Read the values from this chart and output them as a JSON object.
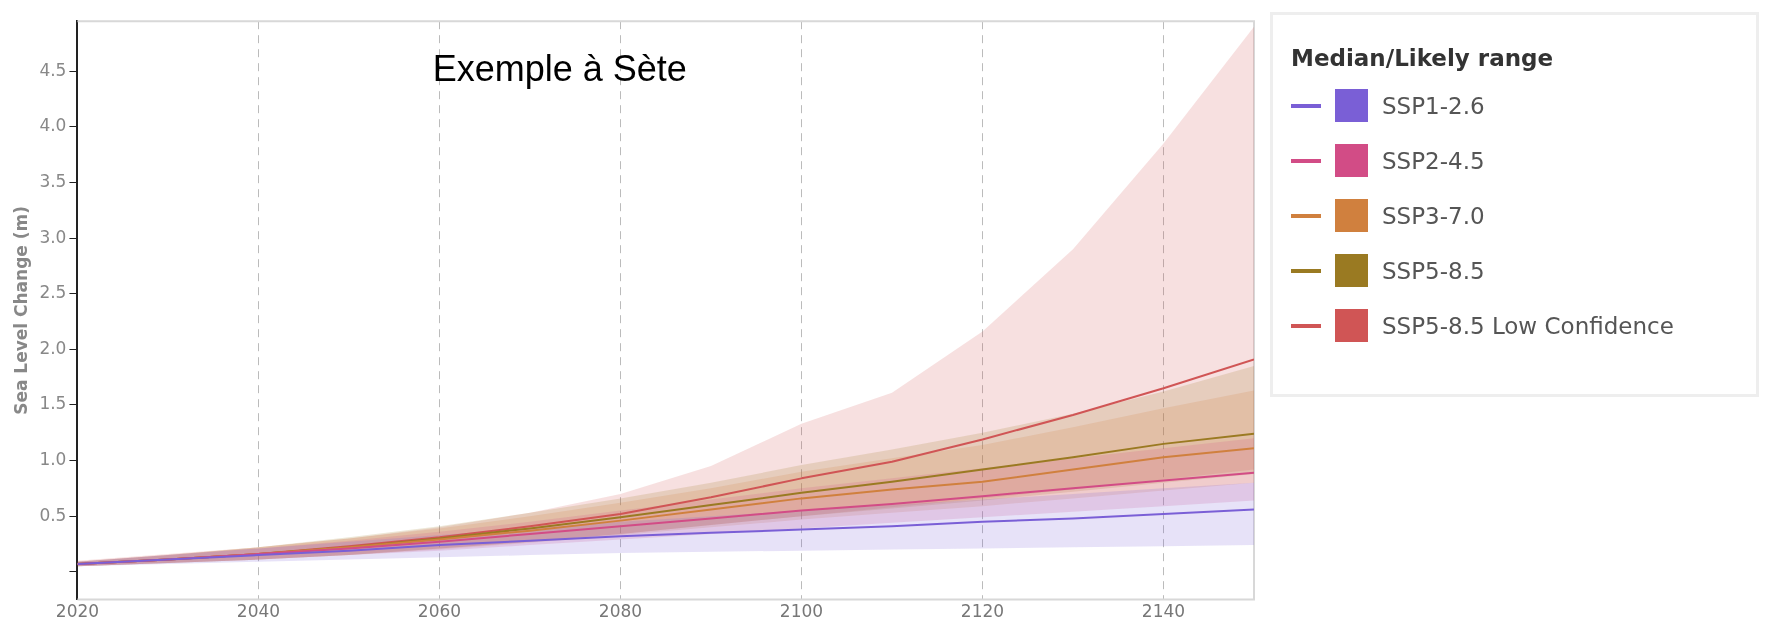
{
  "chart_data": {
    "type": "line",
    "title": "Exemple à Sète",
    "ylabel": "Sea Level Change (m)",
    "legend_title": "Median/Likely range",
    "legend": "right",
    "grid": "x",
    "line_style": "solid",
    "marker": "none",
    "x": [
      2020,
      2030,
      2040,
      2050,
      2060,
      2070,
      2080,
      2090,
      2100,
      2110,
      2120,
      2130,
      2140,
      2150
    ],
    "xlim": [
      2020,
      2150
    ],
    "xticks": [
      2020,
      2040,
      2060,
      2080,
      2100,
      2120,
      2140
    ],
    "ylim": [
      -0.25,
      4.95
    ],
    "yticks": [
      {
        "value": 0,
        "label": null
      },
      0.5,
      {
        "value": 1,
        "label": "1.0"
      },
      1.5,
      {
        "value": 2,
        "label": "2.0"
      },
      2.5,
      {
        "value": 3,
        "label": "3.0"
      },
      3.5,
      {
        "value": 4,
        "label": "4.0"
      },
      4.5
    ],
    "series": [
      {
        "name": "SSP1-2.6",
        "color": "#7a5fd6",
        "values": [
          0.07,
          0.11,
          0.15,
          0.19,
          0.24,
          0.28,
          0.32,
          0.35,
          0.38,
          0.41,
          0.45,
          0.48,
          0.52,
          0.56
        ],
        "lower": [
          0.05,
          0.07,
          0.09,
          0.11,
          0.13,
          0.15,
          0.17,
          0.18,
          0.19,
          0.2,
          0.21,
          0.22,
          0.23,
          0.24
        ],
        "upper": [
          0.09,
          0.15,
          0.21,
          0.27,
          0.33,
          0.39,
          0.45,
          0.5,
          0.55,
          0.6,
          0.65,
          0.7,
          0.75,
          0.8
        ]
      },
      {
        "name": "SSP2-4.5",
        "color": "#d24c86",
        "values": [
          0.07,
          0.11,
          0.16,
          0.21,
          0.27,
          0.34,
          0.41,
          0.48,
          0.55,
          0.61,
          0.68,
          0.75,
          0.82,
          0.89
        ],
        "lower": [
          0.05,
          0.08,
          0.11,
          0.15,
          0.19,
          0.24,
          0.29,
          0.34,
          0.39,
          0.44,
          0.49,
          0.54,
          0.59,
          0.64
        ],
        "upper": [
          0.09,
          0.15,
          0.21,
          0.28,
          0.36,
          0.45,
          0.55,
          0.65,
          0.75,
          0.84,
          0.93,
          1.02,
          1.11,
          1.2
        ]
      },
      {
        "name": "SSP3-7.0",
        "color": "#d0803e",
        "values": [
          0.07,
          0.11,
          0.16,
          0.22,
          0.29,
          0.37,
          0.46,
          0.56,
          0.66,
          0.74,
          0.81,
          0.92,
          1.03,
          1.11
        ],
        "lower": [
          0.05,
          0.08,
          0.11,
          0.15,
          0.2,
          0.26,
          0.33,
          0.4,
          0.47,
          0.53,
          0.59,
          0.66,
          0.73,
          0.8
        ],
        "upper": [
          0.09,
          0.15,
          0.22,
          0.3,
          0.39,
          0.5,
          0.62,
          0.75,
          0.9,
          1.02,
          1.14,
          1.3,
          1.47,
          1.63
        ]
      },
      {
        "name": "SSP5-8.5",
        "color": "#9a7a22",
        "values": [
          0.07,
          0.11,
          0.16,
          0.22,
          0.3,
          0.39,
          0.49,
          0.6,
          0.71,
          0.81,
          0.92,
          1.03,
          1.15,
          1.24
        ],
        "lower": [
          0.05,
          0.08,
          0.11,
          0.15,
          0.21,
          0.27,
          0.34,
          0.42,
          0.5,
          0.57,
          0.64,
          0.72,
          0.8,
          0.88
        ],
        "upper": [
          0.09,
          0.15,
          0.22,
          0.31,
          0.41,
          0.53,
          0.66,
          0.8,
          0.96,
          1.1,
          1.25,
          1.42,
          1.62,
          1.85
        ]
      },
      {
        "name": "SSP5-8.5 Low Confidence",
        "color": "#d05555",
        "values": [
          0.07,
          0.11,
          0.16,
          0.23,
          0.31,
          0.41,
          0.52,
          0.67,
          0.84,
          0.99,
          1.19,
          1.41,
          1.65,
          1.91
        ],
        "lower": [
          0.05,
          0.08,
          0.11,
          0.15,
          0.21,
          0.27,
          0.34,
          0.42,
          0.5,
          0.58,
          0.66,
          0.74,
          0.83,
          0.92
        ],
        "upper": [
          0.1,
          0.16,
          0.22,
          0.3,
          0.4,
          0.53,
          0.7,
          0.95,
          1.33,
          1.61,
          2.16,
          2.9,
          3.85,
          4.9
        ]
      }
    ]
  }
}
